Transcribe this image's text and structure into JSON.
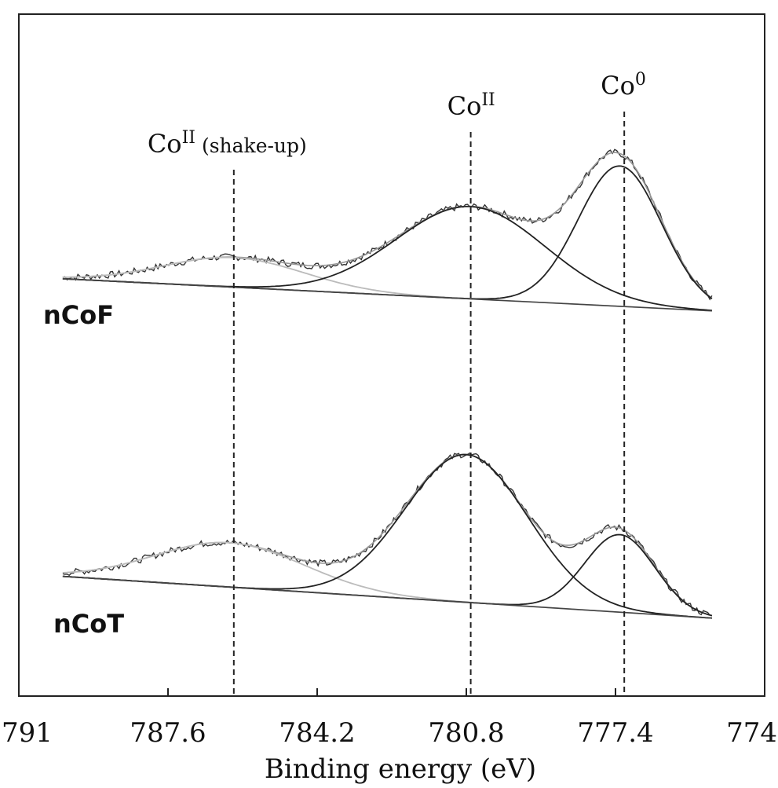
{
  "chart_data": {
    "type": "line",
    "title": "",
    "xlabel": "Binding energy (eV)",
    "ylabel": "",
    "xlim": [
      791,
      774
    ],
    "x_reversed": true,
    "xticks": [
      {
        "value": 791,
        "label": "791"
      },
      {
        "value": 787.6,
        "label": "787.6"
      },
      {
        "value": 784.2,
        "label": "784.2"
      },
      {
        "value": 780.8,
        "label": "780.8"
      },
      {
        "value": 777.4,
        "label": "777.4"
      },
      {
        "value": 774,
        "label": "774"
      }
    ],
    "grid": false,
    "peak_markers": [
      {
        "position_eV": 786.1,
        "label": "Co",
        "superscript": "II",
        "note": "(shake-up)"
      },
      {
        "position_eV": 780.7,
        "label": "Co",
        "superscript": "II",
        "note": ""
      },
      {
        "position_eV": 777.2,
        "label": "Co",
        "superscript": "0",
        "note": ""
      }
    ],
    "panels": [
      {
        "name": "nCoF",
        "baseline_start": 0.02,
        "baseline_end": -0.1,
        "background": {
          "left": 0.0,
          "right": -0.1
        },
        "components": [
          {
            "type": "envelope",
            "center_eV": 0,
            "amplitude": 0,
            "width_eV": 0
          },
          {
            "type": "component",
            "center_eV": 786.1,
            "amplitude": 0.08,
            "width_eV": 1.6
          },
          {
            "type": "component",
            "center_eV": 780.7,
            "amplitude": 0.25,
            "width_eV": 1.7
          },
          {
            "type": "component",
            "center_eV": 777.3,
            "amplitude": 0.38,
            "width_eV": 0.95
          }
        ]
      },
      {
        "name": "nCoT",
        "baseline_start": 0.0,
        "baseline_end": -0.13,
        "background": {
          "left": 0.0,
          "right": -0.13
        },
        "components": [
          {
            "type": "envelope",
            "center_eV": 0,
            "amplitude": 0,
            "width_eV": 0
          },
          {
            "type": "component",
            "center_eV": 786.2,
            "amplitude": 0.12,
            "width_eV": 1.7
          },
          {
            "type": "component",
            "center_eV": 780.8,
            "amplitude": 0.4,
            "width_eV": 1.4
          },
          {
            "type": "component",
            "center_eV": 777.3,
            "amplitude": 0.21,
            "width_eV": 0.8
          }
        ]
      }
    ]
  }
}
